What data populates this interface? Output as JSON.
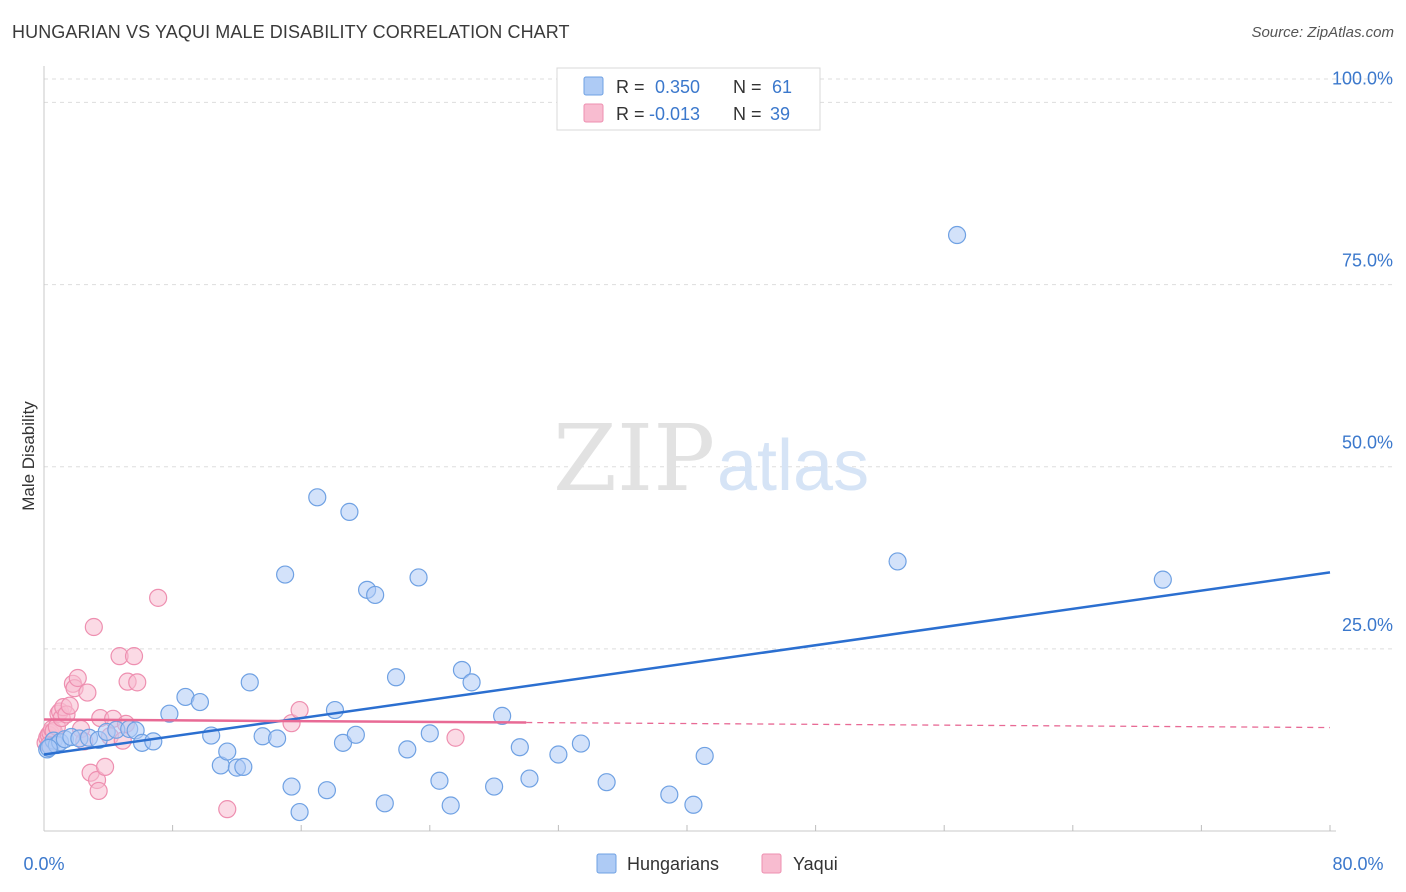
{
  "header": {
    "title": "HUNGARIAN VS YAQUI MALE DISABILITY CORRELATION CHART",
    "source": "Source: ZipAtlas.com"
  },
  "watermark": {
    "zip": "ZIP",
    "atlas": "atlas"
  },
  "colors": {
    "hungarians_fill": "#aecbf5",
    "hungarians_stroke": "#6fa1e3",
    "hungarians_line": "#2b6fd0",
    "yaqui_fill": "#f8bcd0",
    "yaqui_stroke": "#ee8fb0",
    "yaqui_line": "#e86a95",
    "axis_label": "#3b78cc",
    "grid": "#dddddd"
  },
  "legend": {
    "rows": [
      {
        "r_label": "R =",
        "r_value": "0.350",
        "n_label": "N =",
        "n_value": "61"
      },
      {
        "r_label": "R =",
        "r_value": "-0.013",
        "n_label": "N =",
        "n_value": "39"
      }
    ]
  },
  "bottom_legend": {
    "items": [
      "Hungarians",
      "Yaqui"
    ]
  },
  "chart_data": {
    "type": "scatter",
    "title": "HUNGARIAN VS YAQUI MALE DISABILITY CORRELATION CHART",
    "xlabel": "",
    "ylabel": "Male Disability",
    "xlim": [
      0,
      80
    ],
    "ylim": [
      0,
      105
    ],
    "x_tick_labels": [
      "0.0%",
      "80.0%"
    ],
    "y_ticks": [
      25,
      50,
      75,
      100
    ],
    "y_tick_labels": [
      "25.0%",
      "50.0%",
      "75.0%",
      "100.0%"
    ],
    "grid": true,
    "series": [
      {
        "name": "Hungarians",
        "r": 0.35,
        "n": 61,
        "trend": {
          "x": [
            0,
            80
          ],
          "y": [
            10.5,
            35.5
          ],
          "dashed_from": null
        },
        "points": [
          [
            0.2,
            11.2
          ],
          [
            0.4,
            11.6
          ],
          [
            0.6,
            12.4
          ],
          [
            0.8,
            11.8
          ],
          [
            1.0,
            12.2
          ],
          [
            1.3,
            12.6
          ],
          [
            1.7,
            12.9
          ],
          [
            2.2,
            12.7
          ],
          [
            2.8,
            12.8
          ],
          [
            3.4,
            12.5
          ],
          [
            3.9,
            13.6
          ],
          [
            4.5,
            13.9
          ],
          [
            5.3,
            14.0
          ],
          [
            5.7,
            13.8
          ],
          [
            6.1,
            12.1
          ],
          [
            6.8,
            12.3
          ],
          [
            7.8,
            16.1
          ],
          [
            8.8,
            18.4
          ],
          [
            9.7,
            17.7
          ],
          [
            10.4,
            13.1
          ],
          [
            11.0,
            9.0
          ],
          [
            11.4,
            10.9
          ],
          [
            12.0,
            8.7
          ],
          [
            12.4,
            8.8
          ],
          [
            12.8,
            20.4
          ],
          [
            13.6,
            13.0
          ],
          [
            14.5,
            12.7
          ],
          [
            15.0,
            35.2
          ],
          [
            15.4,
            6.1
          ],
          [
            15.9,
            2.6
          ],
          [
            17.0,
            45.8
          ],
          [
            17.6,
            5.6
          ],
          [
            18.1,
            16.6
          ],
          [
            18.6,
            12.1
          ],
          [
            19.0,
            43.8
          ],
          [
            19.4,
            13.2
          ],
          [
            20.1,
            33.1
          ],
          [
            20.6,
            32.4
          ],
          [
            21.2,
            3.8
          ],
          [
            21.9,
            21.1
          ],
          [
            22.6,
            11.2
          ],
          [
            23.3,
            34.8
          ],
          [
            24.0,
            13.4
          ],
          [
            24.6,
            6.9
          ],
          [
            25.3,
            3.5
          ],
          [
            26.0,
            22.1
          ],
          [
            26.6,
            20.4
          ],
          [
            28.0,
            6.1
          ],
          [
            28.5,
            15.8
          ],
          [
            29.6,
            11.5
          ],
          [
            30.2,
            7.2
          ],
          [
            32.0,
            10.5
          ],
          [
            33.4,
            12.0
          ],
          [
            35.0,
            6.7
          ],
          [
            38.9,
            5.0
          ],
          [
            40.4,
            3.6
          ],
          [
            41.1,
            10.3
          ],
          [
            53.1,
            37.0
          ],
          [
            56.8,
            81.8
          ],
          [
            69.6,
            34.5
          ],
          [
            0.3,
            11.4
          ]
        ]
      },
      {
        "name": "Yaqui",
        "r": -0.013,
        "n": 39,
        "trend": {
          "x": [
            0,
            80
          ],
          "y": [
            15.3,
            14.2
          ],
          "dashed_from": 30
        },
        "points": [
          [
            0.1,
            12.1
          ],
          [
            0.2,
            12.8
          ],
          [
            0.3,
            13.2
          ],
          [
            0.4,
            13.5
          ],
          [
            0.5,
            14.0
          ],
          [
            0.6,
            13.7
          ],
          [
            0.8,
            14.3
          ],
          [
            0.9,
            16.1
          ],
          [
            1.0,
            16.4
          ],
          [
            1.1,
            15.5
          ],
          [
            1.2,
            17.0
          ],
          [
            1.4,
            16.0
          ],
          [
            1.6,
            17.2
          ],
          [
            1.8,
            20.2
          ],
          [
            1.9,
            19.6
          ],
          [
            2.1,
            21.0
          ],
          [
            2.3,
            14.0
          ],
          [
            2.5,
            12.3
          ],
          [
            2.7,
            19.0
          ],
          [
            2.9,
            8.0
          ],
          [
            3.1,
            28.0
          ],
          [
            3.3,
            7.0
          ],
          [
            3.4,
            5.5
          ],
          [
            3.5,
            15.5
          ],
          [
            3.8,
            8.8
          ],
          [
            4.1,
            13.0
          ],
          [
            4.3,
            15.4
          ],
          [
            4.7,
            24.0
          ],
          [
            4.9,
            12.4
          ],
          [
            5.1,
            14.7
          ],
          [
            5.2,
            20.5
          ],
          [
            5.6,
            24.0
          ],
          [
            5.8,
            20.4
          ],
          [
            7.1,
            32.0
          ],
          [
            11.4,
            3.0
          ],
          [
            15.4,
            14.8
          ],
          [
            15.9,
            16.6
          ],
          [
            25.6,
            12.8
          ],
          [
            0.3,
            11.8
          ]
        ]
      }
    ]
  }
}
